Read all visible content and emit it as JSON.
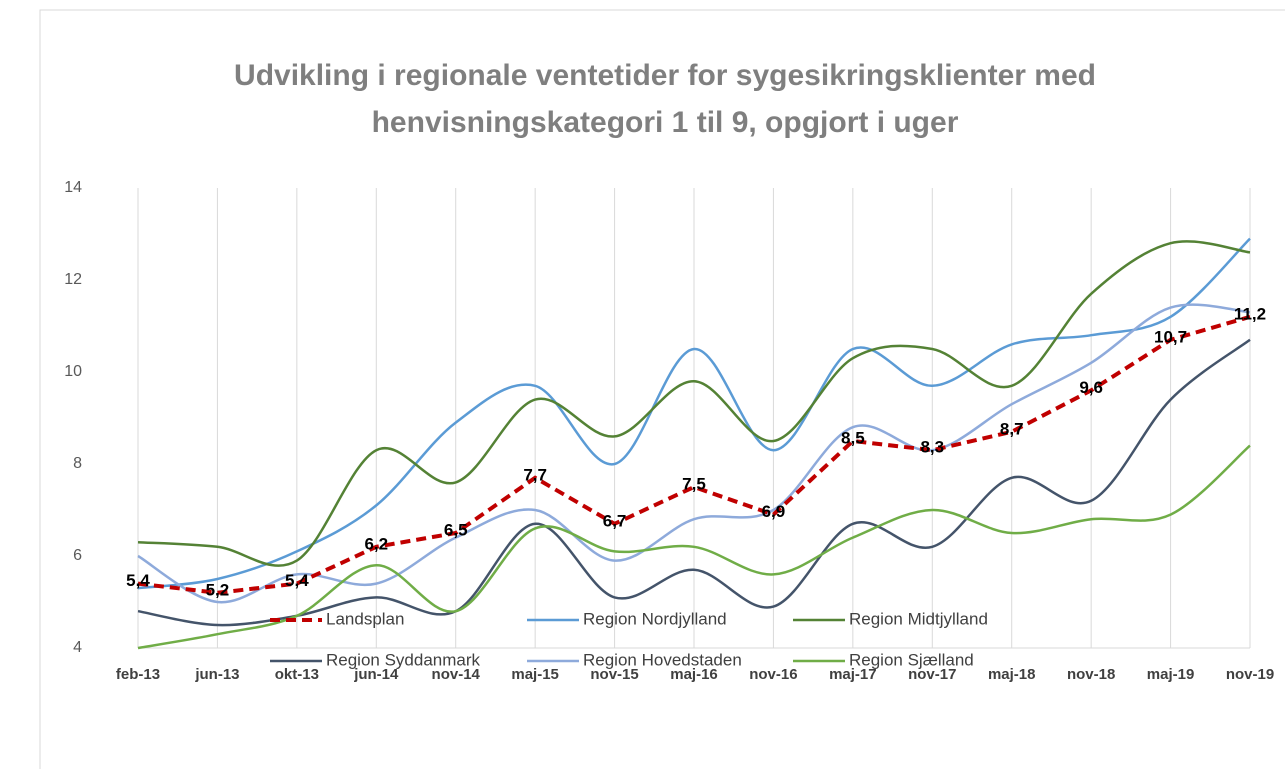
{
  "chart_data": {
    "type": "line",
    "title": "Udvikling i regionale ventetider for sygesikringsklienter med henvisningskategori 1 til 9, opgjort i uger",
    "categories": [
      "feb-13",
      "jun-13",
      "okt-13",
      "jun-14",
      "nov-14",
      "maj-15",
      "nov-15",
      "maj-16",
      "nov-16",
      "maj-17",
      "nov-17",
      "maj-18",
      "nov-18",
      "maj-19",
      "nov-19"
    ],
    "ylim": [
      4,
      14
    ],
    "yticks": [
      4,
      6,
      8,
      10,
      12,
      14
    ],
    "grid": "x",
    "series": [
      {
        "name": "Landsplan",
        "color": "#c00000",
        "dashed": true,
        "smooth": false,
        "values": [
          5.4,
          5.2,
          5.4,
          6.2,
          6.5,
          7.7,
          6.7,
          7.5,
          6.9,
          8.5,
          8.3,
          8.7,
          9.6,
          10.7,
          11.2
        ],
        "value_labels": [
          "5,4",
          "5,2",
          "5,4",
          "6,2",
          "6,5",
          "7,7",
          "6,7",
          "7,5",
          "6,9",
          "8,5",
          "8,3",
          "8,7",
          "9,6",
          "10,7",
          "11,2"
        ]
      },
      {
        "name": "Region Nordjylland",
        "color": "#5b9bd5",
        "smooth": true,
        "values": [
          5.3,
          5.5,
          6.1,
          7.1,
          8.9,
          9.7,
          8.0,
          10.5,
          8.3,
          10.5,
          9.7,
          10.6,
          10.8,
          11.2,
          12.9
        ]
      },
      {
        "name": "Region Midtjylland",
        "color": "#548235",
        "smooth": true,
        "values": [
          6.3,
          6.2,
          5.9,
          8.3,
          7.6,
          9.4,
          8.6,
          9.8,
          8.5,
          10.3,
          10.5,
          9.7,
          11.7,
          12.8,
          12.6
        ]
      },
      {
        "name": "Region Syddanmark",
        "color": "#44546a",
        "smooth": true,
        "values": [
          4.8,
          4.5,
          4.7,
          5.1,
          4.8,
          6.7,
          5.1,
          5.7,
          4.9,
          6.7,
          6.2,
          7.7,
          7.2,
          9.4,
          10.7
        ]
      },
      {
        "name": "Region Hovedstaden",
        "color": "#8eaadb",
        "smooth": true,
        "values": [
          6.0,
          5.0,
          5.6,
          5.4,
          6.4,
          7.0,
          5.9,
          6.8,
          7.0,
          8.8,
          8.3,
          9.3,
          10.2,
          11.4,
          11.3
        ]
      },
      {
        "name": "Region Sjælland",
        "color": "#70ad47",
        "smooth": true,
        "values": [
          4.0,
          4.3,
          4.7,
          5.8,
          4.8,
          6.6,
          6.1,
          6.2,
          5.6,
          6.4,
          7.0,
          6.5,
          6.8,
          6.9,
          8.4
        ]
      }
    ]
  }
}
